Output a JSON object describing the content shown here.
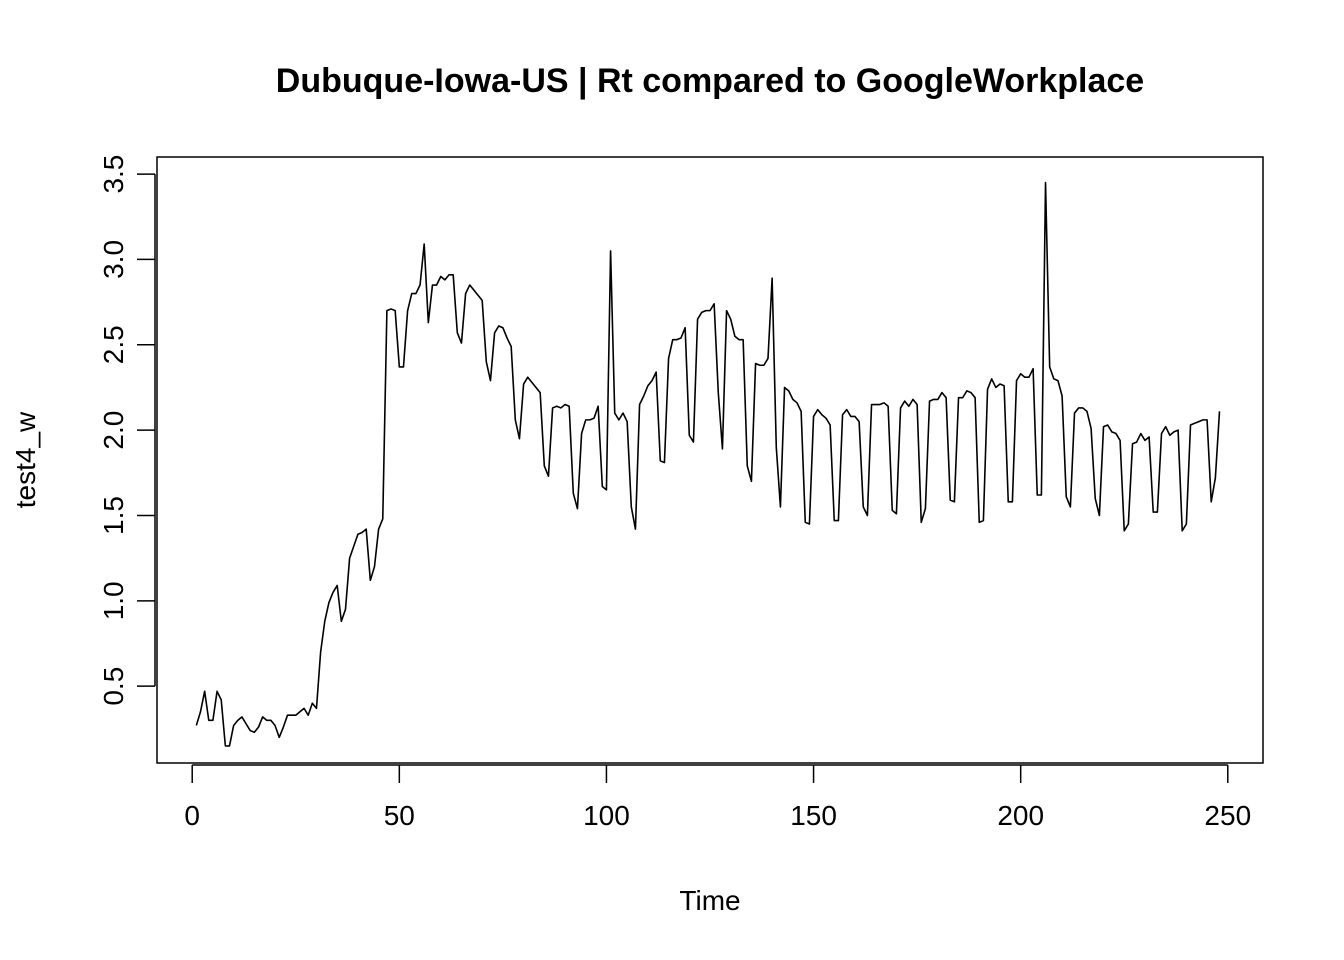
{
  "chart_data": {
    "type": "line",
    "title": "Dubuque-Iowa-US | Rt compared to GoogleWorkplace",
    "xlabel": "Time",
    "ylabel": "test4_w",
    "xlim": [
      -8.5,
      258.5
    ],
    "ylim": [
      0.05,
      3.6
    ],
    "xticks": [
      0,
      50,
      100,
      150,
      200,
      250
    ],
    "yticks": [
      0.5,
      1.0,
      1.5,
      2.0,
      2.5,
      3.0,
      3.5
    ],
    "xtick_labels": [
      "0",
      "50",
      "100",
      "150",
      "200",
      "250"
    ],
    "ytick_labels": [
      "0.5",
      "1.0",
      "1.5",
      "2.0",
      "2.5",
      "3.0",
      "3.5"
    ],
    "grid": false,
    "line_color": "#000000",
    "series": [
      {
        "x": [
          1,
          2,
          3,
          4,
          5,
          6,
          7,
          8,
          9,
          10,
          11,
          12,
          13,
          14,
          15,
          16,
          17,
          18,
          19,
          20,
          21,
          22,
          23,
          24,
          25,
          26,
          27,
          28,
          29,
          30,
          31,
          32,
          33,
          34,
          35,
          36,
          37,
          38,
          39,
          40,
          41,
          42,
          43,
          44,
          45,
          46,
          47,
          48,
          49,
          50,
          51,
          52,
          53,
          54,
          55,
          56,
          57,
          58,
          59,
          60,
          61,
          62,
          63,
          64,
          65,
          66,
          67,
          68,
          69,
          70,
          71,
          72,
          73,
          74,
          75,
          76,
          77,
          78,
          79,
          80,
          81,
          82,
          83,
          84,
          85,
          86,
          87,
          88,
          89,
          90,
          91,
          92,
          93,
          94,
          95,
          96,
          97,
          98,
          99,
          100,
          101,
          102,
          103,
          104,
          105,
          106,
          107,
          108,
          109,
          110,
          111,
          112,
          113,
          114,
          115,
          116,
          117,
          118,
          119,
          120,
          121,
          122,
          123,
          124,
          125,
          126,
          127,
          128,
          129,
          130,
          131,
          132,
          133,
          134,
          135,
          136,
          137,
          138,
          139,
          140,
          141,
          142,
          143,
          144,
          145,
          146,
          147,
          148,
          149,
          150,
          151,
          152,
          153,
          154,
          155,
          156,
          157,
          158,
          159,
          160,
          161,
          162,
          163,
          164,
          165,
          166,
          167,
          168,
          169,
          170,
          171,
          172,
          173,
          174,
          175,
          176,
          177,
          178,
          179,
          180,
          181,
          182,
          183,
          184,
          185,
          186,
          187,
          188,
          189,
          190,
          191,
          192,
          193,
          194,
          195,
          196,
          197,
          198,
          199,
          200,
          201,
          202,
          203,
          204,
          205,
          206,
          207,
          208,
          209,
          210,
          211,
          212,
          213,
          214,
          215,
          216,
          217,
          218,
          219,
          220,
          221,
          222,
          223,
          224,
          225,
          226,
          227,
          228,
          229,
          230,
          231,
          232,
          233,
          234,
          235,
          236,
          237,
          238,
          239,
          240,
          241,
          242,
          243,
          244,
          245,
          246,
          247,
          248
        ],
        "y": [
          0.27,
          0.35,
          0.47,
          0.3,
          0.3,
          0.47,
          0.42,
          0.15,
          0.15,
          0.27,
          0.3,
          0.32,
          0.28,
          0.24,
          0.23,
          0.26,
          0.32,
          0.3,
          0.3,
          0.27,
          0.2,
          0.26,
          0.33,
          0.33,
          0.33,
          0.35,
          0.37,
          0.33,
          0.4,
          0.37,
          0.7,
          0.88,
          0.99,
          1.05,
          1.09,
          0.88,
          0.95,
          1.25,
          1.32,
          1.39,
          1.4,
          1.42,
          1.12,
          1.2,
          1.42,
          1.48,
          2.7,
          2.71,
          2.7,
          2.37,
          2.37,
          2.7,
          2.8,
          2.8,
          2.85,
          3.09,
          2.63,
          2.85,
          2.85,
          2.9,
          2.88,
          2.91,
          2.91,
          2.57,
          2.51,
          2.8,
          2.85,
          2.82,
          2.79,
          2.76,
          2.4,
          2.29,
          2.57,
          2.61,
          2.6,
          2.54,
          2.49,
          2.06,
          1.95,
          2.27,
          2.31,
          2.28,
          2.25,
          2.22,
          1.79,
          1.73,
          2.13,
          2.14,
          2.13,
          2.15,
          2.14,
          1.63,
          1.54,
          1.98,
          2.06,
          2.06,
          2.07,
          2.14,
          1.67,
          1.65,
          3.05,
          2.1,
          2.06,
          2.1,
          2.05,
          1.55,
          1.42,
          2.15,
          2.2,
          2.26,
          2.29,
          2.34,
          1.82,
          1.81,
          2.42,
          2.53,
          2.53,
          2.54,
          2.6,
          1.97,
          1.93,
          2.65,
          2.69,
          2.7,
          2.7,
          2.74,
          2.22,
          1.89,
          2.7,
          2.65,
          2.55,
          2.53,
          2.53,
          1.79,
          1.7,
          2.39,
          2.38,
          2.38,
          2.42,
          2.89,
          1.9,
          1.55,
          2.25,
          2.23,
          2.18,
          2.16,
          2.11,
          1.46,
          1.45,
          2.08,
          2.12,
          2.09,
          2.07,
          2.03,
          1.47,
          1.47,
          2.09,
          2.12,
          2.08,
          2.08,
          2.05,
          1.55,
          1.5,
          2.15,
          2.15,
          2.15,
          2.16,
          2.14,
          1.53,
          1.51,
          2.13,
          2.17,
          2.14,
          2.18,
          2.15,
          1.46,
          1.54,
          2.17,
          2.18,
          2.18,
          2.22,
          2.19,
          1.59,
          1.58,
          2.19,
          2.19,
          2.23,
          2.22,
          2.19,
          1.46,
          1.47,
          2.24,
          2.3,
          2.25,
          2.27,
          2.26,
          1.58,
          1.58,
          2.29,
          2.33,
          2.31,
          2.31,
          2.36,
          1.62,
          1.62,
          3.45,
          2.37,
          2.3,
          2.29,
          2.2,
          1.61,
          1.55,
          2.1,
          2.13,
          2.13,
          2.11,
          2.01,
          1.6,
          1.5,
          2.02,
          2.03,
          1.99,
          1.98,
          1.94,
          1.41,
          1.45,
          1.92,
          1.93,
          1.98,
          1.94,
          1.96,
          1.52,
          1.52,
          1.98,
          2.02,
          1.97,
          1.99,
          2.0,
          1.41,
          1.45,
          2.03,
          2.04,
          2.05,
          2.06,
          2.06,
          1.58,
          1.72,
          2.11
        ]
      }
    ]
  }
}
